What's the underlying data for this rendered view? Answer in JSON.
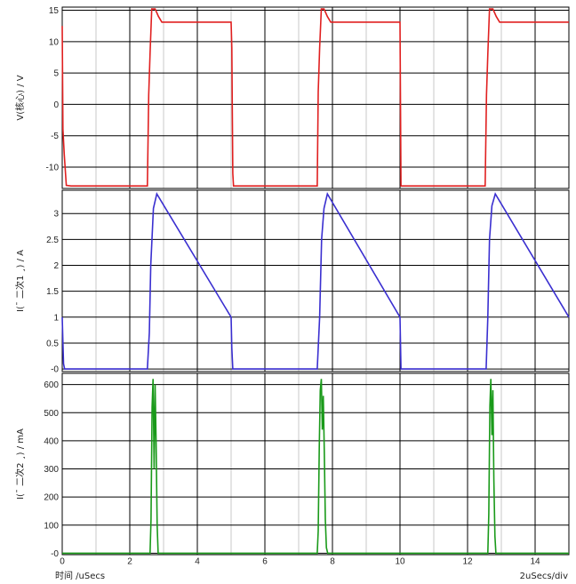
{
  "chart_data": [
    {
      "type": "line",
      "ylabel": "V(核心) / V",
      "ylim": [
        -13.4,
        15.5
      ],
      "yticks": [
        -10,
        -5,
        0,
        5,
        10,
        15
      ],
      "color": "#e02020",
      "series": [
        {
          "x": [
            0,
            0.02,
            0.06,
            0.12,
            0.18,
            0.26,
            2.52,
            2.56,
            2.6,
            2.65,
            2.75,
            2.85,
            2.95,
            5.0,
            5.02,
            5.05,
            5.07,
            7.55,
            7.58,
            7.62,
            7.67,
            7.75,
            7.85,
            7.95,
            10.0,
            10.03,
            12.52,
            12.56,
            12.6,
            12.65,
            12.75,
            12.85,
            12.95,
            15.0
          ],
          "y": [
            12.5,
            -4.0,
            -8.0,
            -12.9,
            -12.95,
            -13.0,
            -13.0,
            1.5,
            8.0,
            15.2,
            15.2,
            14.0,
            13.1,
            13.1,
            9.0,
            -11.0,
            -13.0,
            -13.0,
            2.0,
            9.0,
            15.2,
            15.2,
            14.0,
            13.1,
            13.1,
            -13.0,
            -13.0,
            1.5,
            8.0,
            15.2,
            15.2,
            14.0,
            13.1,
            13.1
          ]
        }
      ]
    },
    {
      "type": "line",
      "ylabel": "I(¯ 二次1 ¸) / A",
      "ylim": [
        -0.05,
        3.45
      ],
      "yticks": [
        0,
        0.5,
        1,
        1.5,
        2,
        2.5,
        3
      ],
      "ytick_labels": [
        "-0",
        "0.5",
        "1",
        "1.5",
        "2",
        "2.5",
        "3"
      ],
      "color": "#3a2fd0",
      "series": [
        {
          "x": [
            0,
            0.02,
            0.04,
            0.07,
            2.52,
            2.58,
            2.62,
            2.7,
            2.8,
            5.0,
            5.02,
            5.05,
            7.55,
            7.62,
            7.68,
            7.75,
            7.85,
            10.0,
            10.03,
            12.55,
            12.6,
            12.65,
            12.72,
            12.82,
            15.0
          ],
          "y": [
            1.0,
            0.5,
            0.1,
            0.0,
            0.0,
            0.7,
            2.0,
            3.1,
            3.38,
            1.0,
            0.4,
            0.0,
            0.0,
            1.0,
            2.5,
            3.1,
            3.38,
            1.0,
            0.0,
            0.0,
            1.0,
            2.5,
            3.15,
            3.38,
            1.0
          ]
        }
      ]
    },
    {
      "type": "line",
      "ylabel": "I(¯ 二次2 ¸) / mA",
      "ylim": [
        -5,
        640
      ],
      "yticks": [
        0,
        100,
        200,
        300,
        400,
        500,
        600
      ],
      "ytick_labels": [
        "-0",
        "100",
        "200",
        "300",
        "400",
        "500",
        "600"
      ],
      "xlabel": "时间 /uSecs",
      "xlim": [
        0,
        15
      ],
      "xticks": [
        0,
        2,
        4,
        6,
        8,
        10,
        12,
        14
      ],
      "xscale_label": "2uSecs/div",
      "color": "#1a9a1a",
      "series": [
        {
          "x": [
            0,
            2.6,
            2.63,
            2.66,
            2.69,
            2.72,
            2.75,
            2.78,
            2.81,
            2.84,
            7.55,
            7.58,
            7.61,
            7.64,
            7.67,
            7.7,
            7.73,
            7.76,
            7.79,
            7.82,
            7.86,
            12.6,
            12.63,
            12.66,
            12.69,
            12.72,
            12.75,
            12.78,
            12.81,
            12.84,
            15.0
          ],
          "y": [
            0,
            0,
            120,
            520,
            620,
            300,
            600,
            400,
            100,
            0,
            0,
            80,
            380,
            580,
            620,
            440,
            560,
            350,
            120,
            20,
            0,
            0,
            140,
            520,
            620,
            420,
            580,
            260,
            60,
            0,
            0
          ]
        }
      ]
    }
  ]
}
